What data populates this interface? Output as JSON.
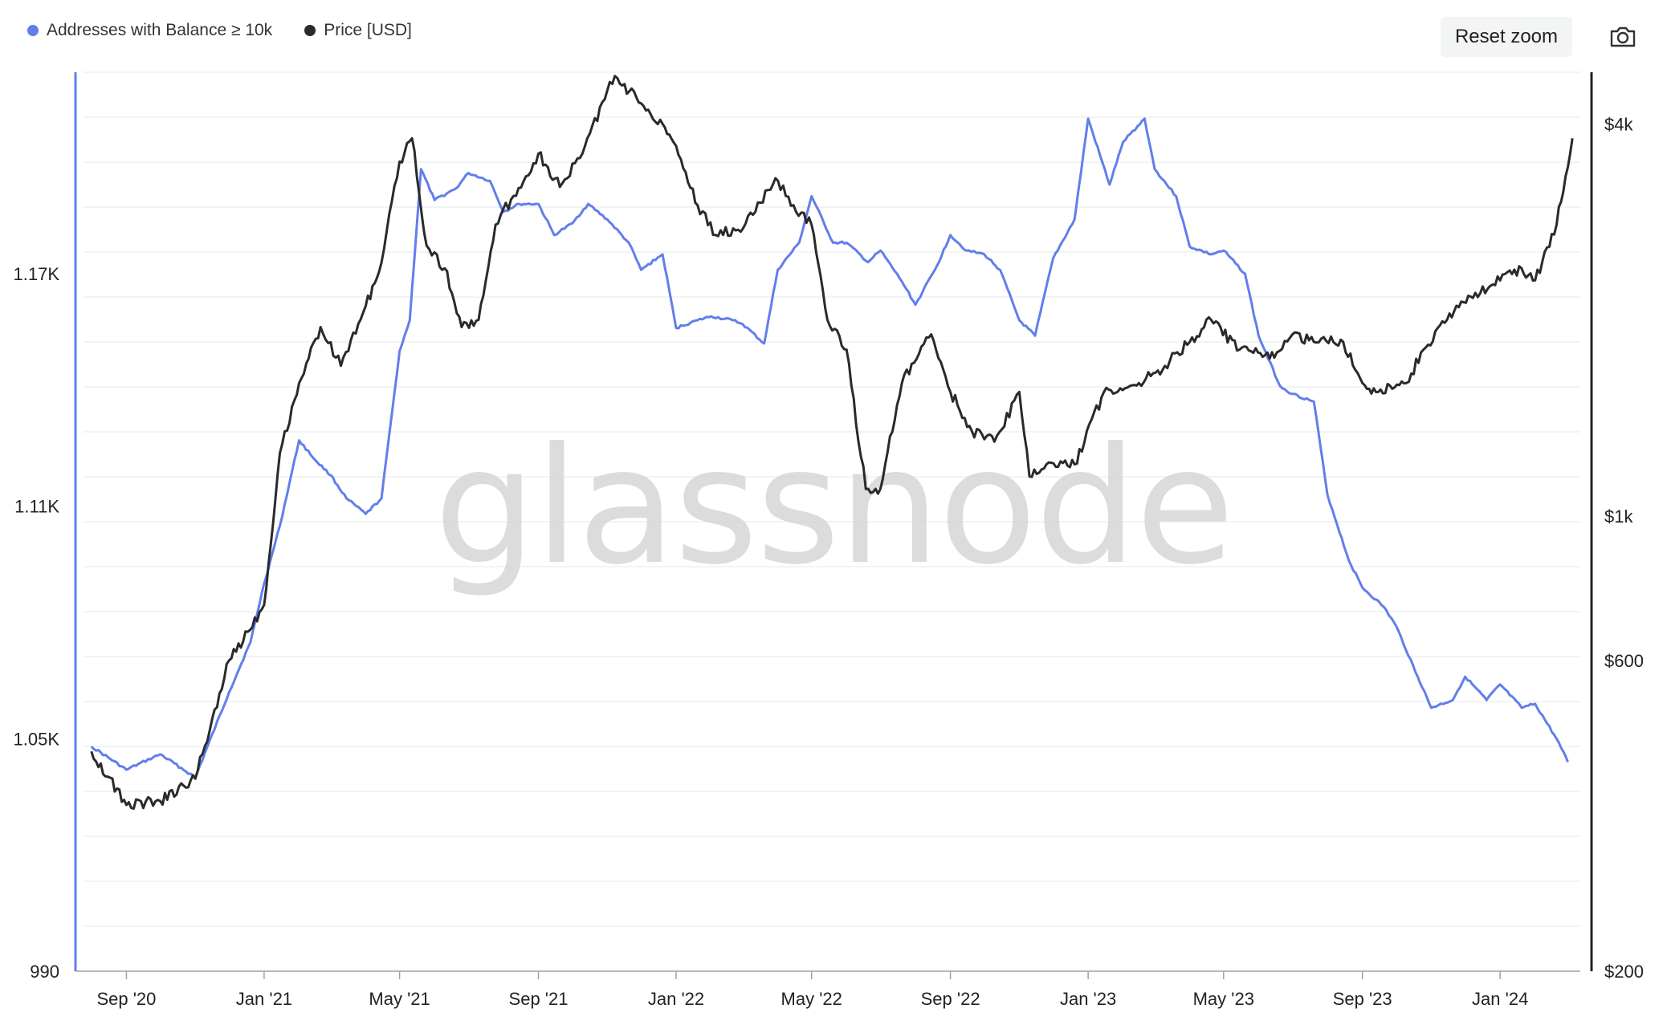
{
  "legend": {
    "series1": "Addresses with Balance ≥ 10k",
    "series2": "Price [USD]"
  },
  "toolbar": {
    "reset_zoom": "Reset zoom",
    "camera_icon": "camera-icon"
  },
  "watermark": "glassnode",
  "colors": {
    "series1": "#627eea",
    "series2": "#2a2a2a",
    "grid": "#e5e7eb"
  },
  "chart_data": {
    "type": "line",
    "title": "",
    "x_ticks": [
      "Sep '20",
      "Jan '21",
      "May '21",
      "Sep '21",
      "Jan '22",
      "May '22",
      "Sep '22",
      "Jan '23",
      "May '23",
      "Sep '23",
      "Jan '24"
    ],
    "y_left": {
      "ticks": [
        "990",
        "1.05K",
        "1.11K",
        "1.17K"
      ],
      "range": [
        990,
        1222
      ]
    },
    "y_right": {
      "ticks": [
        "$200",
        "$600",
        "$1k",
        "$4k"
      ],
      "scale": "log",
      "range": [
        200,
        4800
      ]
    },
    "series": [
      {
        "name": "Addresses with Balance ≥ 10k",
        "axis": "left",
        "x": [
          "2020-08-01",
          "2020-09-01",
          "2020-10-01",
          "2020-11-01",
          "2020-12-01",
          "2020-12-20",
          "2021-01-01",
          "2021-01-15",
          "2021-02-01",
          "2021-02-15",
          "2021-03-01",
          "2021-03-15",
          "2021-04-01",
          "2021-04-15",
          "2021-05-01",
          "2021-05-10",
          "2021-05-20",
          "2021-06-01",
          "2021-06-20",
          "2021-07-01",
          "2021-07-20",
          "2021-08-01",
          "2021-08-15",
          "2021-09-01",
          "2021-09-15",
          "2021-10-01",
          "2021-10-15",
          "2021-11-01",
          "2021-11-20",
          "2021-12-01",
          "2021-12-20",
          "2022-01-01",
          "2022-01-20",
          "2022-02-01",
          "2022-02-20",
          "2022-03-01",
          "2022-03-20",
          "2022-04-01",
          "2022-04-20",
          "2022-05-01",
          "2022-05-20",
          "2022-06-01",
          "2022-06-20",
          "2022-07-01",
          "2022-07-20",
          "2022-08-01",
          "2022-08-20",
          "2022-09-01",
          "2022-09-15",
          "2022-10-01",
          "2022-10-15",
          "2022-11-01",
          "2022-11-15",
          "2022-12-01",
          "2022-12-20",
          "2023-01-01",
          "2023-01-20",
          "2023-02-01",
          "2023-02-20",
          "2023-03-01",
          "2023-03-20",
          "2023-04-01",
          "2023-04-20",
          "2023-05-01",
          "2023-05-20",
          "2023-06-01",
          "2023-06-20",
          "2023-07-01",
          "2023-07-20",
          "2023-08-01",
          "2023-08-20",
          "2023-09-01",
          "2023-09-20",
          "2023-10-01",
          "2023-10-20",
          "2023-11-01",
          "2023-11-20",
          "2023-12-01",
          "2023-12-20",
          "2024-01-01",
          "2024-01-20",
          "2024-02-01",
          "2024-02-20",
          "2024-03-01"
        ],
        "y": [
          1048,
          1042,
          1046,
          1040,
          1062,
          1075,
          1090,
          1105,
          1127,
          1122,
          1118,
          1112,
          1108,
          1112,
          1150,
          1158,
          1197,
          1189,
          1192,
          1196,
          1194,
          1186,
          1188,
          1188,
          1180,
          1183,
          1188,
          1184,
          1178,
          1171,
          1175,
          1156,
          1158,
          1159,
          1158,
          1157,
          1152,
          1171,
          1178,
          1190,
          1178,
          1178,
          1173,
          1176,
          1168,
          1162,
          1172,
          1180,
          1176,
          1175,
          1171,
          1158,
          1154,
          1174,
          1184,
          1210,
          1193,
          1204,
          1210,
          1197,
          1190,
          1177,
          1175,
          1176,
          1170,
          1154,
          1141,
          1139,
          1137,
          1113,
          1096,
          1089,
          1084,
          1079,
          1066,
          1058,
          1060,
          1066,
          1060,
          1064,
          1058,
          1059,
          1050,
          1044
        ]
      },
      {
        "name": "Price [USD]",
        "axis": "right",
        "x": [
          "2020-08-01",
          "2020-09-01",
          "2020-10-01",
          "2020-11-01",
          "2020-12-01",
          "2021-01-01",
          "2021-01-15",
          "2021-02-01",
          "2021-02-20",
          "2021-03-10",
          "2021-04-01",
          "2021-04-15",
          "2021-05-01",
          "2021-05-12",
          "2021-05-25",
          "2021-06-10",
          "2021-06-25",
          "2021-07-10",
          "2021-07-25",
          "2021-08-10",
          "2021-09-01",
          "2021-09-20",
          "2021-10-10",
          "2021-11-01",
          "2021-11-10",
          "2021-12-01",
          "2021-12-20",
          "2022-01-01",
          "2022-01-20",
          "2022-02-05",
          "2022-02-25",
          "2022-03-10",
          "2022-03-30",
          "2022-04-15",
          "2022-05-01",
          "2022-05-15",
          "2022-06-01",
          "2022-06-18",
          "2022-07-01",
          "2022-07-20",
          "2022-08-15",
          "2022-09-01",
          "2022-09-20",
          "2022-10-10",
          "2022-11-01",
          "2022-11-10",
          "2022-11-25",
          "2022-12-20",
          "2023-01-15",
          "2023-02-15",
          "2023-03-10",
          "2023-04-01",
          "2023-04-20",
          "2023-05-15",
          "2023-06-15",
          "2023-07-01",
          "2023-07-20",
          "2023-08-15",
          "2023-09-01",
          "2023-09-15",
          "2023-10-10",
          "2023-10-25",
          "2023-11-15",
          "2023-12-10",
          "2024-01-01",
          "2024-01-20",
          "2024-02-01",
          "2024-02-20",
          "2024-03-05"
        ],
        "y": [
          435,
          360,
          365,
          395,
          600,
          730,
          1250,
          1600,
          1950,
          1700,
          2100,
          2450,
          3500,
          3800,
          2600,
          2400,
          1950,
          2000,
          2800,
          3100,
          3600,
          3200,
          3600,
          4500,
          4700,
          4300,
          4000,
          3700,
          3000,
          2700,
          2750,
          2900,
          3300,
          3000,
          2800,
          2000,
          1800,
          1100,
          1100,
          1600,
          1900,
          1550,
          1350,
          1300,
          1550,
          1150,
          1200,
          1200,
          1550,
          1600,
          1700,
          1850,
          2000,
          1800,
          1750,
          1900,
          1850,
          1850,
          1600,
          1550,
          1600,
          1800,
          2000,
          2200,
          2300,
          2400,
          2300,
          2800,
          3800
        ]
      }
    ]
  }
}
